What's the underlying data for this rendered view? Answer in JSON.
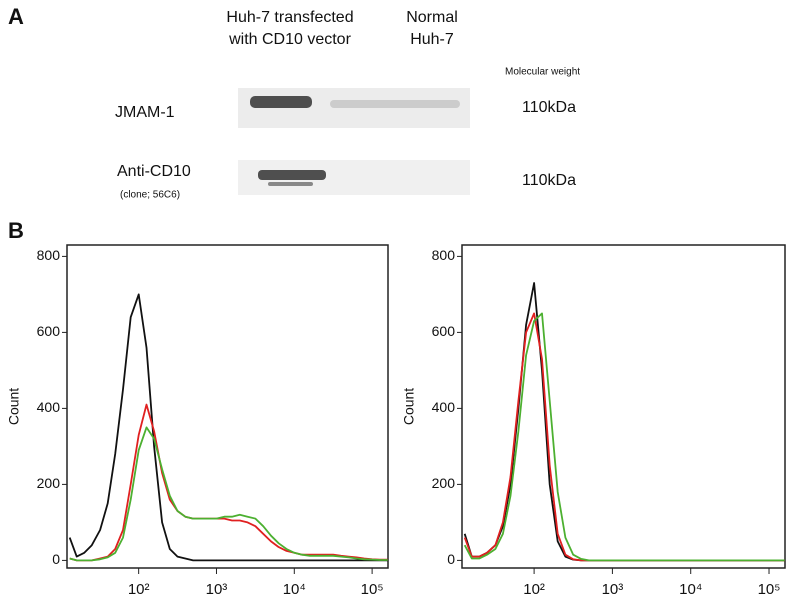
{
  "panel_a": {
    "label": "A",
    "column_headers": [
      [
        "Huh-7 transfected",
        "with CD10 vector"
      ],
      [
        "Normal",
        "Huh-7"
      ]
    ],
    "mw_header": "Molecular weight",
    "rows": [
      {
        "label": "JMAM-1",
        "weight": "110kDa"
      },
      {
        "label": "Anti-CD10",
        "sublabel": "(clone; 56C6)",
        "weight": "110kDa"
      }
    ]
  },
  "panel_b": {
    "label": "B"
  },
  "chart_data": [
    {
      "type": "line",
      "y_label": "Count",
      "log_x": true,
      "xlim": [
        12,
        160000
      ],
      "ylim": [
        -20,
        830
      ],
      "yticks": [
        0,
        200,
        400,
        600,
        800
      ],
      "xticks": [
        {
          "value": 100,
          "label": "10²"
        },
        {
          "value": 1000,
          "label": "10³"
        },
        {
          "value": 10000,
          "label": "10⁴"
        },
        {
          "value": 100000,
          "label": "10⁵"
        }
      ],
      "x": [
        13,
        16,
        20,
        25,
        32,
        40,
        50,
        63,
        79,
        100,
        126,
        158,
        200,
        251,
        316,
        398,
        501,
        631,
        794,
        1000,
        1259,
        1585,
        1995,
        2512,
        3162,
        3981,
        5012,
        6310,
        7943,
        10000,
        12589,
        15849,
        19953,
        25119,
        31623,
        39811,
        50119,
        63096,
        79433,
        100000,
        125893,
        158489
      ],
      "series": [
        {
          "color": "#111111",
          "values": [
            60,
            10,
            20,
            40,
            80,
            150,
            280,
            450,
            640,
            700,
            560,
            300,
            100,
            30,
            10,
            5,
            0,
            0,
            0,
            0,
            0,
            0,
            0,
            0,
            0,
            0,
            0,
            0,
            0,
            0,
            0,
            0,
            0,
            0,
            0,
            0,
            0,
            0,
            0,
            0,
            0,
            0
          ]
        },
        {
          "color": "#e02020",
          "values": [
            5,
            0,
            0,
            0,
            5,
            10,
            30,
            80,
            200,
            330,
            410,
            340,
            230,
            160,
            130,
            115,
            110,
            110,
            110,
            110,
            110,
            105,
            105,
            100,
            90,
            70,
            50,
            35,
            25,
            20,
            15,
            15,
            15,
            15,
            15,
            12,
            10,
            8,
            5,
            3,
            2,
            2
          ]
        },
        {
          "color": "#4cb030",
          "values": [
            5,
            0,
            0,
            0,
            3,
            8,
            20,
            60,
            160,
            290,
            350,
            320,
            240,
            170,
            130,
            115,
            110,
            110,
            110,
            110,
            115,
            115,
            120,
            115,
            110,
            90,
            65,
            45,
            30,
            20,
            15,
            12,
            12,
            12,
            12,
            10,
            8,
            5,
            3,
            2,
            1,
            1
          ]
        }
      ]
    },
    {
      "type": "line",
      "y_label": "Count",
      "log_x": true,
      "xlim": [
        12,
        160000
      ],
      "ylim": [
        -20,
        830
      ],
      "yticks": [
        0,
        200,
        400,
        600,
        800
      ],
      "xticks": [
        {
          "value": 100,
          "label": "10²"
        },
        {
          "value": 1000,
          "label": "10³"
        },
        {
          "value": 10000,
          "label": "10⁴"
        },
        {
          "value": 100000,
          "label": "10⁵"
        }
      ],
      "x": [
        13,
        16,
        20,
        25,
        32,
        40,
        50,
        63,
        79,
        100,
        126,
        158,
        200,
        251,
        316,
        398,
        501,
        631,
        794,
        1000,
        1259,
        1585,
        1995,
        2512,
        3162,
        3981,
        5012,
        6310,
        7943,
        10000,
        12589,
        15849,
        19953,
        25119,
        31623,
        39811,
        50119,
        63096,
        79433,
        100000,
        125893,
        158489
      ],
      "series": [
        {
          "color": "#111111",
          "values": [
            70,
            10,
            10,
            20,
            40,
            90,
            200,
            400,
            620,
            730,
            500,
            200,
            50,
            10,
            2,
            0,
            0,
            0,
            0,
            0,
            0,
            0,
            0,
            0,
            0,
            0,
            0,
            0,
            0,
            0,
            0,
            0,
            0,
            0,
            0,
            0,
            0,
            0,
            0,
            0,
            0,
            0
          ]
        },
        {
          "color": "#e02020",
          "values": [
            60,
            10,
            10,
            20,
            40,
            100,
            220,
            420,
            600,
            650,
            530,
            250,
            70,
            15,
            3,
            0,
            0,
            0,
            0,
            0,
            0,
            0,
            0,
            0,
            0,
            0,
            0,
            0,
            0,
            0,
            0,
            0,
            0,
            0,
            0,
            0,
            0,
            0,
            0,
            0,
            0,
            0
          ]
        },
        {
          "color": "#4cb030",
          "values": [
            40,
            5,
            5,
            15,
            30,
            70,
            170,
            340,
            540,
            630,
            650,
            420,
            180,
            60,
            15,
            4,
            0,
            0,
            0,
            0,
            0,
            0,
            0,
            0,
            0,
            0,
            0,
            0,
            0,
            0,
            0,
            0,
            0,
            0,
            0,
            0,
            0,
            0,
            0,
            0,
            0,
            0
          ]
        }
      ]
    }
  ]
}
